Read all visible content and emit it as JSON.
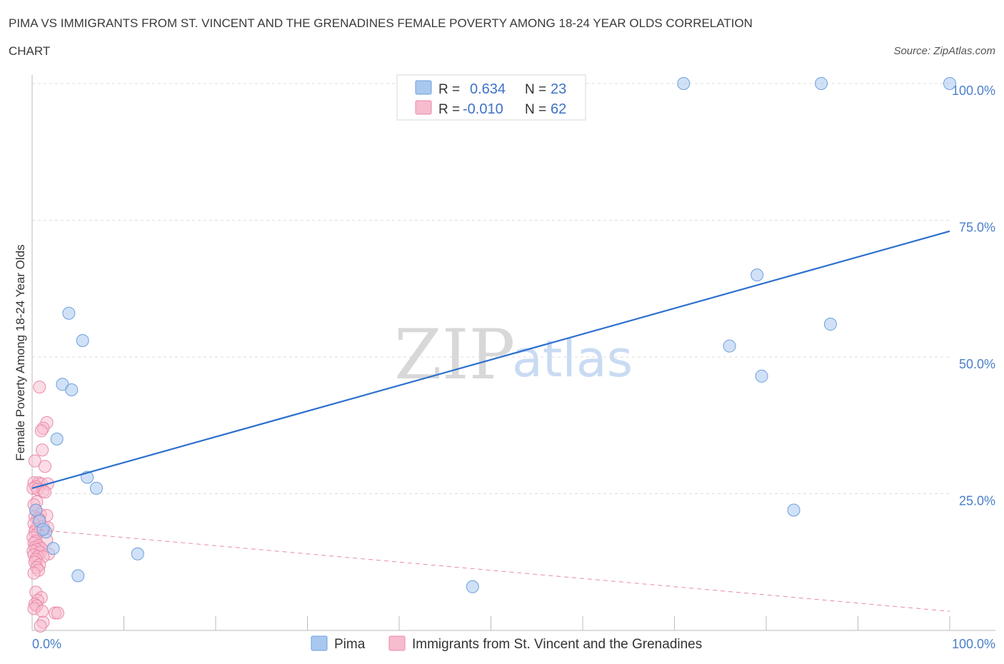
{
  "chart_data": {
    "type": "scatter",
    "title": "PIMA VS IMMIGRANTS FROM ST. VINCENT AND THE GRENADINES FEMALE POVERTY AMONG 18-24 YEAR OLDS CORRELATION CHART",
    "title_lines": [
      "PIMA VS IMMIGRANTS FROM ST. VINCENT AND THE GRENADINES FEMALE POVERTY AMONG 18-24 YEAR OLDS CORRELATION",
      "CHART"
    ],
    "source": "Source: ZipAtlas.com",
    "xlabel": "",
    "ylabel": "Female Poverty Among 18-24 Year Olds",
    "xlim": [
      0,
      100
    ],
    "ylim": [
      0,
      100
    ],
    "x_tick_labels": [
      "0.0%",
      "100.0%"
    ],
    "y_ticks": [
      25,
      50,
      75,
      100
    ],
    "y_tick_labels": [
      "25.0%",
      "50.0%",
      "75.0%",
      "100.0%"
    ],
    "grid": true,
    "legend_position": "top-center",
    "watermark": {
      "zip": "ZIP",
      "atlas": "atlas"
    },
    "stats": [
      {
        "r_label": "R =",
        "r_value": "0.634",
        "n_label": "N =",
        "n_value": "23"
      },
      {
        "r_label": "R =",
        "r_value": "-0.010",
        "n_label": "N =",
        "n_value": "62"
      }
    ],
    "series": [
      {
        "name": "Pima",
        "color": "#a9c8f0",
        "stroke": "#6e9fdc",
        "trend_color": "#2c6fce",
        "trend": {
          "x": [
            0,
            100
          ],
          "y": [
            26,
            73
          ]
        },
        "points": [
          [
            4,
            58
          ],
          [
            5.5,
            53
          ],
          [
            3.3,
            45
          ],
          [
            4.3,
            44
          ],
          [
            2.7,
            35
          ],
          [
            6,
            28
          ],
          [
            7,
            26
          ],
          [
            1.5,
            18
          ],
          [
            2.3,
            15
          ],
          [
            5,
            10
          ],
          [
            11.5,
            14
          ],
          [
            48,
            8
          ],
          [
            71,
            100
          ],
          [
            86,
            100
          ],
          [
            100,
            100
          ],
          [
            79,
            65
          ],
          [
            76,
            52
          ],
          [
            87,
            56
          ],
          [
            79.5,
            46.5
          ],
          [
            83,
            22
          ],
          [
            0.4,
            22
          ],
          [
            0.8,
            20
          ],
          [
            1.2,
            18.5
          ]
        ]
      },
      {
        "name": "Immigrants from St. Vincent and the Grenadines",
        "color": "#f7bccd",
        "stroke": "#e98aa9",
        "trend_color": "#e98aa9",
        "trend": {
          "x": [
            0,
            100
          ],
          "y": [
            18.5,
            3.5
          ]
        },
        "points": [
          [
            0.8,
            44.5
          ],
          [
            1.6,
            38
          ],
          [
            1.2,
            37
          ],
          [
            1.0,
            36.5
          ],
          [
            1.1,
            33
          ],
          [
            0.3,
            31
          ],
          [
            1.4,
            30
          ],
          [
            0.2,
            27
          ],
          [
            0.7,
            27
          ],
          [
            1.0,
            26.8
          ],
          [
            1.7,
            26.8
          ],
          [
            0.4,
            26.3
          ],
          [
            0.1,
            26
          ],
          [
            0.6,
            25.8
          ],
          [
            1.2,
            25.5
          ],
          [
            1.4,
            25.3
          ],
          [
            0.5,
            23.5
          ],
          [
            0.2,
            23
          ],
          [
            0.4,
            22
          ],
          [
            0.9,
            21.2
          ],
          [
            1.6,
            21
          ],
          [
            0.3,
            20.8
          ],
          [
            0.6,
            20.5
          ],
          [
            0.8,
            20.3
          ],
          [
            0.2,
            19.5
          ],
          [
            1.2,
            19
          ],
          [
            1.7,
            18.8
          ],
          [
            0.4,
            18.5
          ],
          [
            1.0,
            18.3
          ],
          [
            0.3,
            18.0
          ],
          [
            0.6,
            17.8
          ],
          [
            0.1,
            17.0
          ],
          [
            1.6,
            16.5
          ],
          [
            0.4,
            16.3
          ],
          [
            0.2,
            16.0
          ],
          [
            0.7,
            15.5
          ],
          [
            0.3,
            15.2
          ],
          [
            1.0,
            15.0
          ],
          [
            0.5,
            14.8
          ],
          [
            0.1,
            14.5
          ],
          [
            0.9,
            14.3
          ],
          [
            1.8,
            14.0
          ],
          [
            0.2,
            13.8
          ],
          [
            0.6,
            13.5
          ],
          [
            1.2,
            13.5
          ],
          [
            0.4,
            13.0
          ],
          [
            0.3,
            12.5
          ],
          [
            0.8,
            12.0
          ],
          [
            0.5,
            11.5
          ],
          [
            0.7,
            11.0
          ],
          [
            0.2,
            10.5
          ],
          [
            0.4,
            7.0
          ],
          [
            1.0,
            6.0
          ],
          [
            0.6,
            5.5
          ],
          [
            0.3,
            4.8
          ],
          [
            0.5,
            4.5
          ],
          [
            0.2,
            4.0
          ],
          [
            1.1,
            3.5
          ],
          [
            2.5,
            3.2
          ],
          [
            2.8,
            3.2
          ],
          [
            1.2,
            1.5
          ],
          [
            0.9,
            0.8
          ]
        ]
      }
    ]
  }
}
